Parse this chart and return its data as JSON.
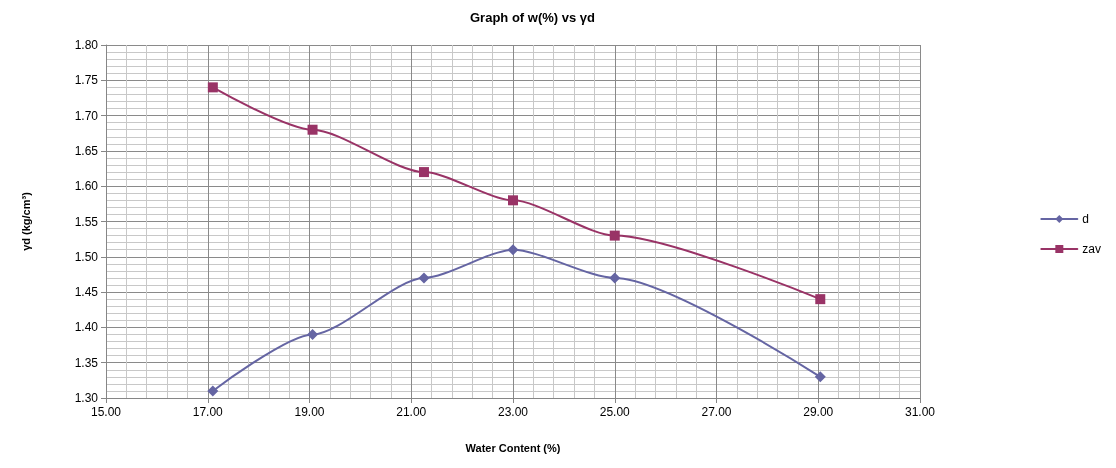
{
  "chart_data": {
    "type": "line",
    "title": "Graph of w(%) vs γd",
    "xlabel": "Water Content (%)",
    "ylabel": "γd (kg/cm³)",
    "series": [
      {
        "name": "d",
        "color": "#6565a3",
        "marker": "diamond",
        "x": [
          17.1,
          19.06,
          21.25,
          23.0,
          25.0,
          29.04
        ],
        "values": [
          1.31,
          1.39,
          1.47,
          1.51,
          1.47,
          1.33
        ]
      },
      {
        "name": "zav",
        "color": "#993366",
        "marker": "square",
        "x": [
          17.1,
          19.06,
          21.25,
          23.0,
          25.0,
          29.04
        ],
        "values": [
          1.74,
          1.68,
          1.62,
          1.58,
          1.53,
          1.44
        ]
      }
    ],
    "xlim": [
      15,
      31
    ],
    "xticks": [
      {
        "value": 15,
        "label": "15.00"
      },
      {
        "value": 17,
        "label": "17.00"
      },
      {
        "value": 19,
        "label": "19.00"
      },
      {
        "value": 21,
        "label": "21.00"
      },
      {
        "value": 23,
        "label": "23.00"
      },
      {
        "value": 25,
        "label": "25.00"
      },
      {
        "value": 27,
        "label": "27.00"
      },
      {
        "value": 29,
        "label": "29.00"
      },
      {
        "value": 31,
        "label": "31.00"
      }
    ],
    "ylim": [
      1.3,
      1.8
    ],
    "yticks": [
      {
        "value": 1.3,
        "label": "1.30"
      },
      {
        "value": 1.35,
        "label": "1.35"
      },
      {
        "value": 1.4,
        "label": "1.40"
      },
      {
        "value": 1.45,
        "label": "1.45"
      },
      {
        "value": 1.5,
        "label": "1.50"
      },
      {
        "value": 1.55,
        "label": "1.55"
      },
      {
        "value": 1.6,
        "label": "1.60"
      },
      {
        "value": 1.65,
        "label": "1.65"
      },
      {
        "value": 1.7,
        "label": "1.70"
      },
      {
        "value": 1.75,
        "label": "1.75"
      },
      {
        "value": 1.8,
        "label": "1.80"
      }
    ],
    "grid": true,
    "legend": "right",
    "line_style": "solid"
  }
}
